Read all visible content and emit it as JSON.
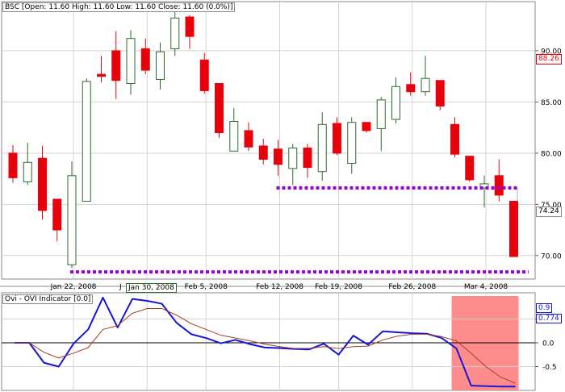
{
  "price_panel": {
    "header": {
      "symbol": "BSC",
      "open_label": "Open:",
      "open": "11.60",
      "high_label": "High:",
      "high": "11.60",
      "low_label": "Low:",
      "low": "11.60",
      "close_label": "Close:",
      "close": "11.60",
      "change": "(0.0%)"
    },
    "last_price_label": "74.24",
    "marker_label": "88.26",
    "x_highlight_label": "Jan 30, 2008"
  },
  "indicator_panel": {
    "header": "Ovi - OVI Indicator [0.0]",
    "value_label_1": "0.9",
    "value_label_2": "0.774"
  },
  "colors": {
    "up_candle": "#ffffff",
    "down_candle": "#e8000b",
    "candle_outline": "#2e6a2e",
    "support_line": "#9b00d8",
    "ovi_line": "#1515d8",
    "signal_line": "#a83c24",
    "highlight_fill": "#ff7f7f",
    "grid": "#d3d3d3"
  },
  "chart_data": [
    {
      "type": "candlestick",
      "title": "BSC",
      "x_ticks": [
        "Jan 22, 2008",
        "Jan 30, 2008",
        "Feb 5, 2008",
        "Feb 12, 2008",
        "Feb 19, 2008",
        "Feb 26, 2008",
        "Mar 4, 2008"
      ],
      "y_ticks": [
        70.0,
        75.0,
        80.0,
        85.0,
        90.0
      ],
      "ylim": [
        67.7,
        94.8
      ],
      "grid": true,
      "candles": [
        {
          "o": 80.0,
          "h": 80.8,
          "l": 77.1,
          "c": 77.6
        },
        {
          "o": 77.2,
          "h": 81.0,
          "l": 76.9,
          "c": 79.1
        },
        {
          "o": 79.5,
          "h": 80.7,
          "l": 73.5,
          "c": 74.4
        },
        {
          "o": 75.5,
          "h": 75.5,
          "l": 71.4,
          "c": 72.5
        },
        {
          "o": 69.1,
          "h": 79.2,
          "l": 68.8,
          "c": 77.8
        },
        {
          "o": 75.3,
          "h": 87.3,
          "l": 75.3,
          "c": 87.0
        },
        {
          "o": 87.7,
          "h": 89.5,
          "l": 86.9,
          "c": 87.5
        },
        {
          "o": 90.0,
          "h": 91.9,
          "l": 85.3,
          "c": 87.1
        },
        {
          "o": 86.8,
          "h": 92.0,
          "l": 85.7,
          "c": 91.2
        },
        {
          "o": 90.2,
          "h": 91.2,
          "l": 87.7,
          "c": 88.1
        },
        {
          "o": 87.2,
          "h": 90.8,
          "l": 86.2,
          "c": 89.9
        },
        {
          "o": 90.2,
          "h": 93.8,
          "l": 89.5,
          "c": 93.2
        },
        {
          "o": 93.3,
          "h": 93.5,
          "l": 90.2,
          "c": 91.4
        },
        {
          "o": 89.1,
          "h": 89.8,
          "l": 85.8,
          "c": 86.1
        },
        {
          "o": 86.8,
          "h": 86.8,
          "l": 81.5,
          "c": 82.0
        },
        {
          "o": 80.2,
          "h": 84.4,
          "l": 80.2,
          "c": 83.1
        },
        {
          "o": 82.2,
          "h": 83.0,
          "l": 80.2,
          "c": 80.6
        },
        {
          "o": 80.7,
          "h": 81.4,
          "l": 78.9,
          "c": 79.4
        },
        {
          "o": 80.4,
          "h": 81.3,
          "l": 77.8,
          "c": 78.9
        },
        {
          "o": 78.5,
          "h": 80.9,
          "l": 76.9,
          "c": 80.5
        },
        {
          "o": 80.5,
          "h": 80.9,
          "l": 77.6,
          "c": 78.6
        },
        {
          "o": 78.2,
          "h": 84.0,
          "l": 77.3,
          "c": 82.8
        },
        {
          "o": 82.9,
          "h": 83.5,
          "l": 79.8,
          "c": 80.0
        },
        {
          "o": 79.0,
          "h": 83.5,
          "l": 78.0,
          "c": 83.0
        },
        {
          "o": 83.0,
          "h": 83.0,
          "l": 82.0,
          "c": 82.2
        },
        {
          "o": 82.4,
          "h": 85.5,
          "l": 80.2,
          "c": 85.2
        },
        {
          "o": 83.3,
          "h": 87.4,
          "l": 82.9,
          "c": 86.5
        },
        {
          "o": 86.7,
          "h": 87.9,
          "l": 85.6,
          "c": 86.0
        },
        {
          "o": 86.0,
          "h": 89.5,
          "l": 85.6,
          "c": 87.3
        },
        {
          "o": 87.1,
          "h": 87.1,
          "l": 84.2,
          "c": 84.6
        },
        {
          "o": 82.8,
          "h": 83.5,
          "l": 79.6,
          "c": 79.9
        },
        {
          "o": 79.7,
          "h": 79.7,
          "l": 77.2,
          "c": 77.4
        },
        {
          "o": 76.6,
          "h": 77.8,
          "l": 74.7,
          "c": 77.0
        },
        {
          "o": 77.8,
          "h": 79.4,
          "l": 75.3,
          "c": 75.9
        },
        {
          "o": 75.3,
          "h": 75.3,
          "l": 69.9,
          "c": 69.9
        }
      ],
      "support_lines": [
        {
          "y": 76.6,
          "from_index": 18,
          "to_index": 34
        },
        {
          "y": 68.4,
          "from_index": 4,
          "to_index": 35
        }
      ]
    },
    {
      "type": "line",
      "title": "Ovi - OVI Indicator [0.0]",
      "y_ticks": [
        -0.5,
        0.0,
        0.5
      ],
      "ylim": [
        -1.0,
        1.05
      ],
      "grid": true,
      "x_index": [
        0,
        1,
        2,
        3,
        4,
        5,
        6,
        7,
        8,
        9,
        10,
        11,
        12,
        13,
        14,
        15,
        16,
        17,
        18,
        19,
        20,
        21,
        22,
        23,
        24,
        25,
        26,
        27,
        28,
        29,
        30,
        31,
        32,
        33,
        34
      ],
      "series": [
        {
          "values": [
            0.0,
            0.0,
            -0.42,
            -0.5,
            -0.02,
            0.28,
            0.95,
            0.32,
            0.92,
            0.88,
            0.82,
            0.42,
            0.18,
            0.1,
            -0.01,
            0.06,
            -0.03,
            -0.1,
            -0.11,
            -0.13,
            -0.14,
            -0.02,
            -0.25,
            0.15,
            -0.04,
            0.24,
            0.22,
            0.2,
            0.19,
            0.1,
            -0.12,
            -0.9,
            -0.91,
            -0.92,
            -0.92
          ]
        },
        {
          "values": [
            0.0,
            0.0,
            -0.2,
            -0.32,
            -0.22,
            -0.1,
            0.28,
            0.36,
            0.62,
            0.72,
            0.72,
            0.58,
            0.4,
            0.28,
            0.16,
            0.1,
            0.04,
            -0.03,
            -0.08,
            -0.12,
            -0.12,
            -0.08,
            -0.12,
            -0.08,
            -0.07,
            0.06,
            0.14,
            0.18,
            0.18,
            0.13,
            0.04,
            -0.22,
            -0.5,
            -0.72,
            -0.85
          ]
        }
      ],
      "highlight_range": [
        30,
        34
      ]
    }
  ]
}
